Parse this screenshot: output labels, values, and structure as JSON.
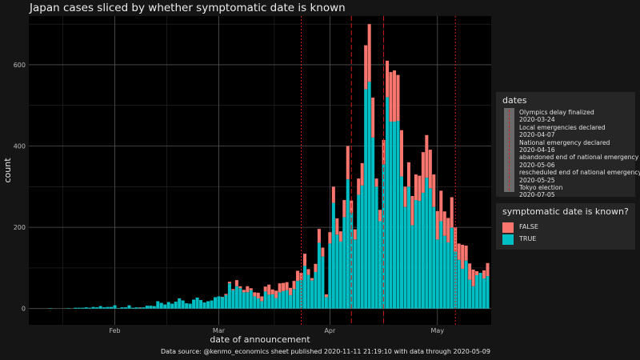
{
  "chart_data": {
    "type": "bar",
    "stacked": true,
    "title": "Japan cases sliced by whether symptomatic date is known",
    "xlabel": "date of announcement",
    "ylabel": "count",
    "ylim": [
      -40,
      720
    ],
    "yticks": [
      0,
      200,
      400,
      600
    ],
    "x_ticks": [
      {
        "label": "Feb",
        "date": "2020-02-01"
      },
      {
        "label": "Mar",
        "date": "2020-03-01"
      },
      {
        "label": "Apr",
        "date": "2020-04-01"
      },
      {
        "label": "May",
        "date": "2020-05-01"
      }
    ],
    "xlim": [
      "2020-01-08",
      "2020-05-16"
    ],
    "grid": true,
    "caption": "Data source: @kenmo_economics sheet published 2020-11-11 21:19:10 with data through 2020-05-09",
    "start_date": "2020-01-14",
    "series": [
      {
        "name": "TRUE",
        "color": "#00BFC4",
        "values": [
          1,
          0,
          0,
          0,
          0,
          1,
          0,
          2,
          2,
          2,
          3,
          2,
          4,
          3,
          6,
          3,
          4,
          4,
          8,
          1,
          3,
          3,
          8,
          2,
          3,
          2,
          3,
          7,
          7,
          6,
          18,
          14,
          10,
          16,
          12,
          17,
          25,
          20,
          13,
          12,
          22,
          27,
          21,
          15,
          18,
          20,
          28,
          30,
          28,
          33,
          62,
          45,
          55,
          50,
          40,
          40,
          45,
          30,
          25,
          18,
          42,
          34,
          35,
          26,
          40,
          43,
          45,
          33,
          48,
          68,
          70,
          105,
          83,
          69,
          90,
          162,
          128,
          28,
          160,
          260,
          182,
          165,
          225,
          318,
          236,
          170,
          280,
          303,
          540,
          558,
          421,
          300,
          215,
          355,
          520,
          460,
          460,
          462,
          325,
          250,
          300,
          205,
          267,
          265,
          285,
          322,
          296,
          250,
          170,
          215,
          179,
          163,
          199,
          140,
          120,
          98,
          118,
          71,
          55,
          82,
          88,
          74,
          80
        ]
      },
      {
        "name": "FALSE",
        "color": "#F8766D",
        "values": [
          0,
          0,
          0,
          0,
          0,
          0,
          0,
          0,
          0,
          0,
          0,
          0,
          0,
          0,
          0,
          0,
          0,
          0,
          0,
          0,
          0,
          0,
          0,
          0,
          0,
          1,
          0,
          0,
          0,
          0,
          0,
          0,
          0,
          0,
          0,
          0,
          0,
          0,
          0,
          0,
          0,
          0,
          0,
          0,
          0,
          0,
          0,
          0,
          1,
          3,
          4,
          3,
          15,
          5,
          6,
          15,
          5,
          10,
          14,
          12,
          12,
          25,
          12,
          18,
          22,
          20,
          20,
          18,
          20,
          25,
          18,
          30,
          14,
          6,
          20,
          34,
          22,
          7,
          28,
          40,
          40,
          25,
          42,
          82,
          30,
          25,
          40,
          55,
          108,
          142,
          98,
          20,
          28,
          60,
          90,
          122,
          126,
          113,
          114,
          50,
          60,
          72,
          63,
          62,
          100,
          105,
          95,
          80,
          70,
          75,
          60,
          60,
          75,
          60,
          40,
          59,
          37,
          40,
          41,
          10,
          0,
          20,
          32
        ]
      }
    ],
    "event_lines": [
      {
        "label": "Olympics delay finalized",
        "date": "2020-03-24"
      },
      {
        "label": "Local emergencies declared",
        "date": "2020-04-07"
      },
      {
        "label": "National emergency declared",
        "date": "2020-04-16"
      },
      {
        "label": "abandoned end of national emergency",
        "date": "2020-05-06"
      },
      {
        "label": "rescheduled end of national emergency",
        "date": "2020-05-25"
      },
      {
        "label": "Tokyo election",
        "date": "2020-07-05"
      }
    ]
  },
  "legends": {
    "dates": {
      "title": "dates",
      "lines": [
        "Olympics delay finalized",
        "2020-03-24",
        "Local emergencies declared",
        "2020-04-07",
        "National emergency declared",
        "2020-04-16",
        "abandoned end of national emergency",
        "2020-05-06",
        "rescheduled end of national emergency",
        "2020-05-25",
        "Tokyo election",
        "2020-07-05"
      ]
    },
    "symptomatic": {
      "title": "symptomatic date is known?",
      "items": [
        {
          "label": "FALSE",
          "color": "#F8766D"
        },
        {
          "label": "TRUE",
          "color": "#00BFC4"
        }
      ]
    }
  }
}
